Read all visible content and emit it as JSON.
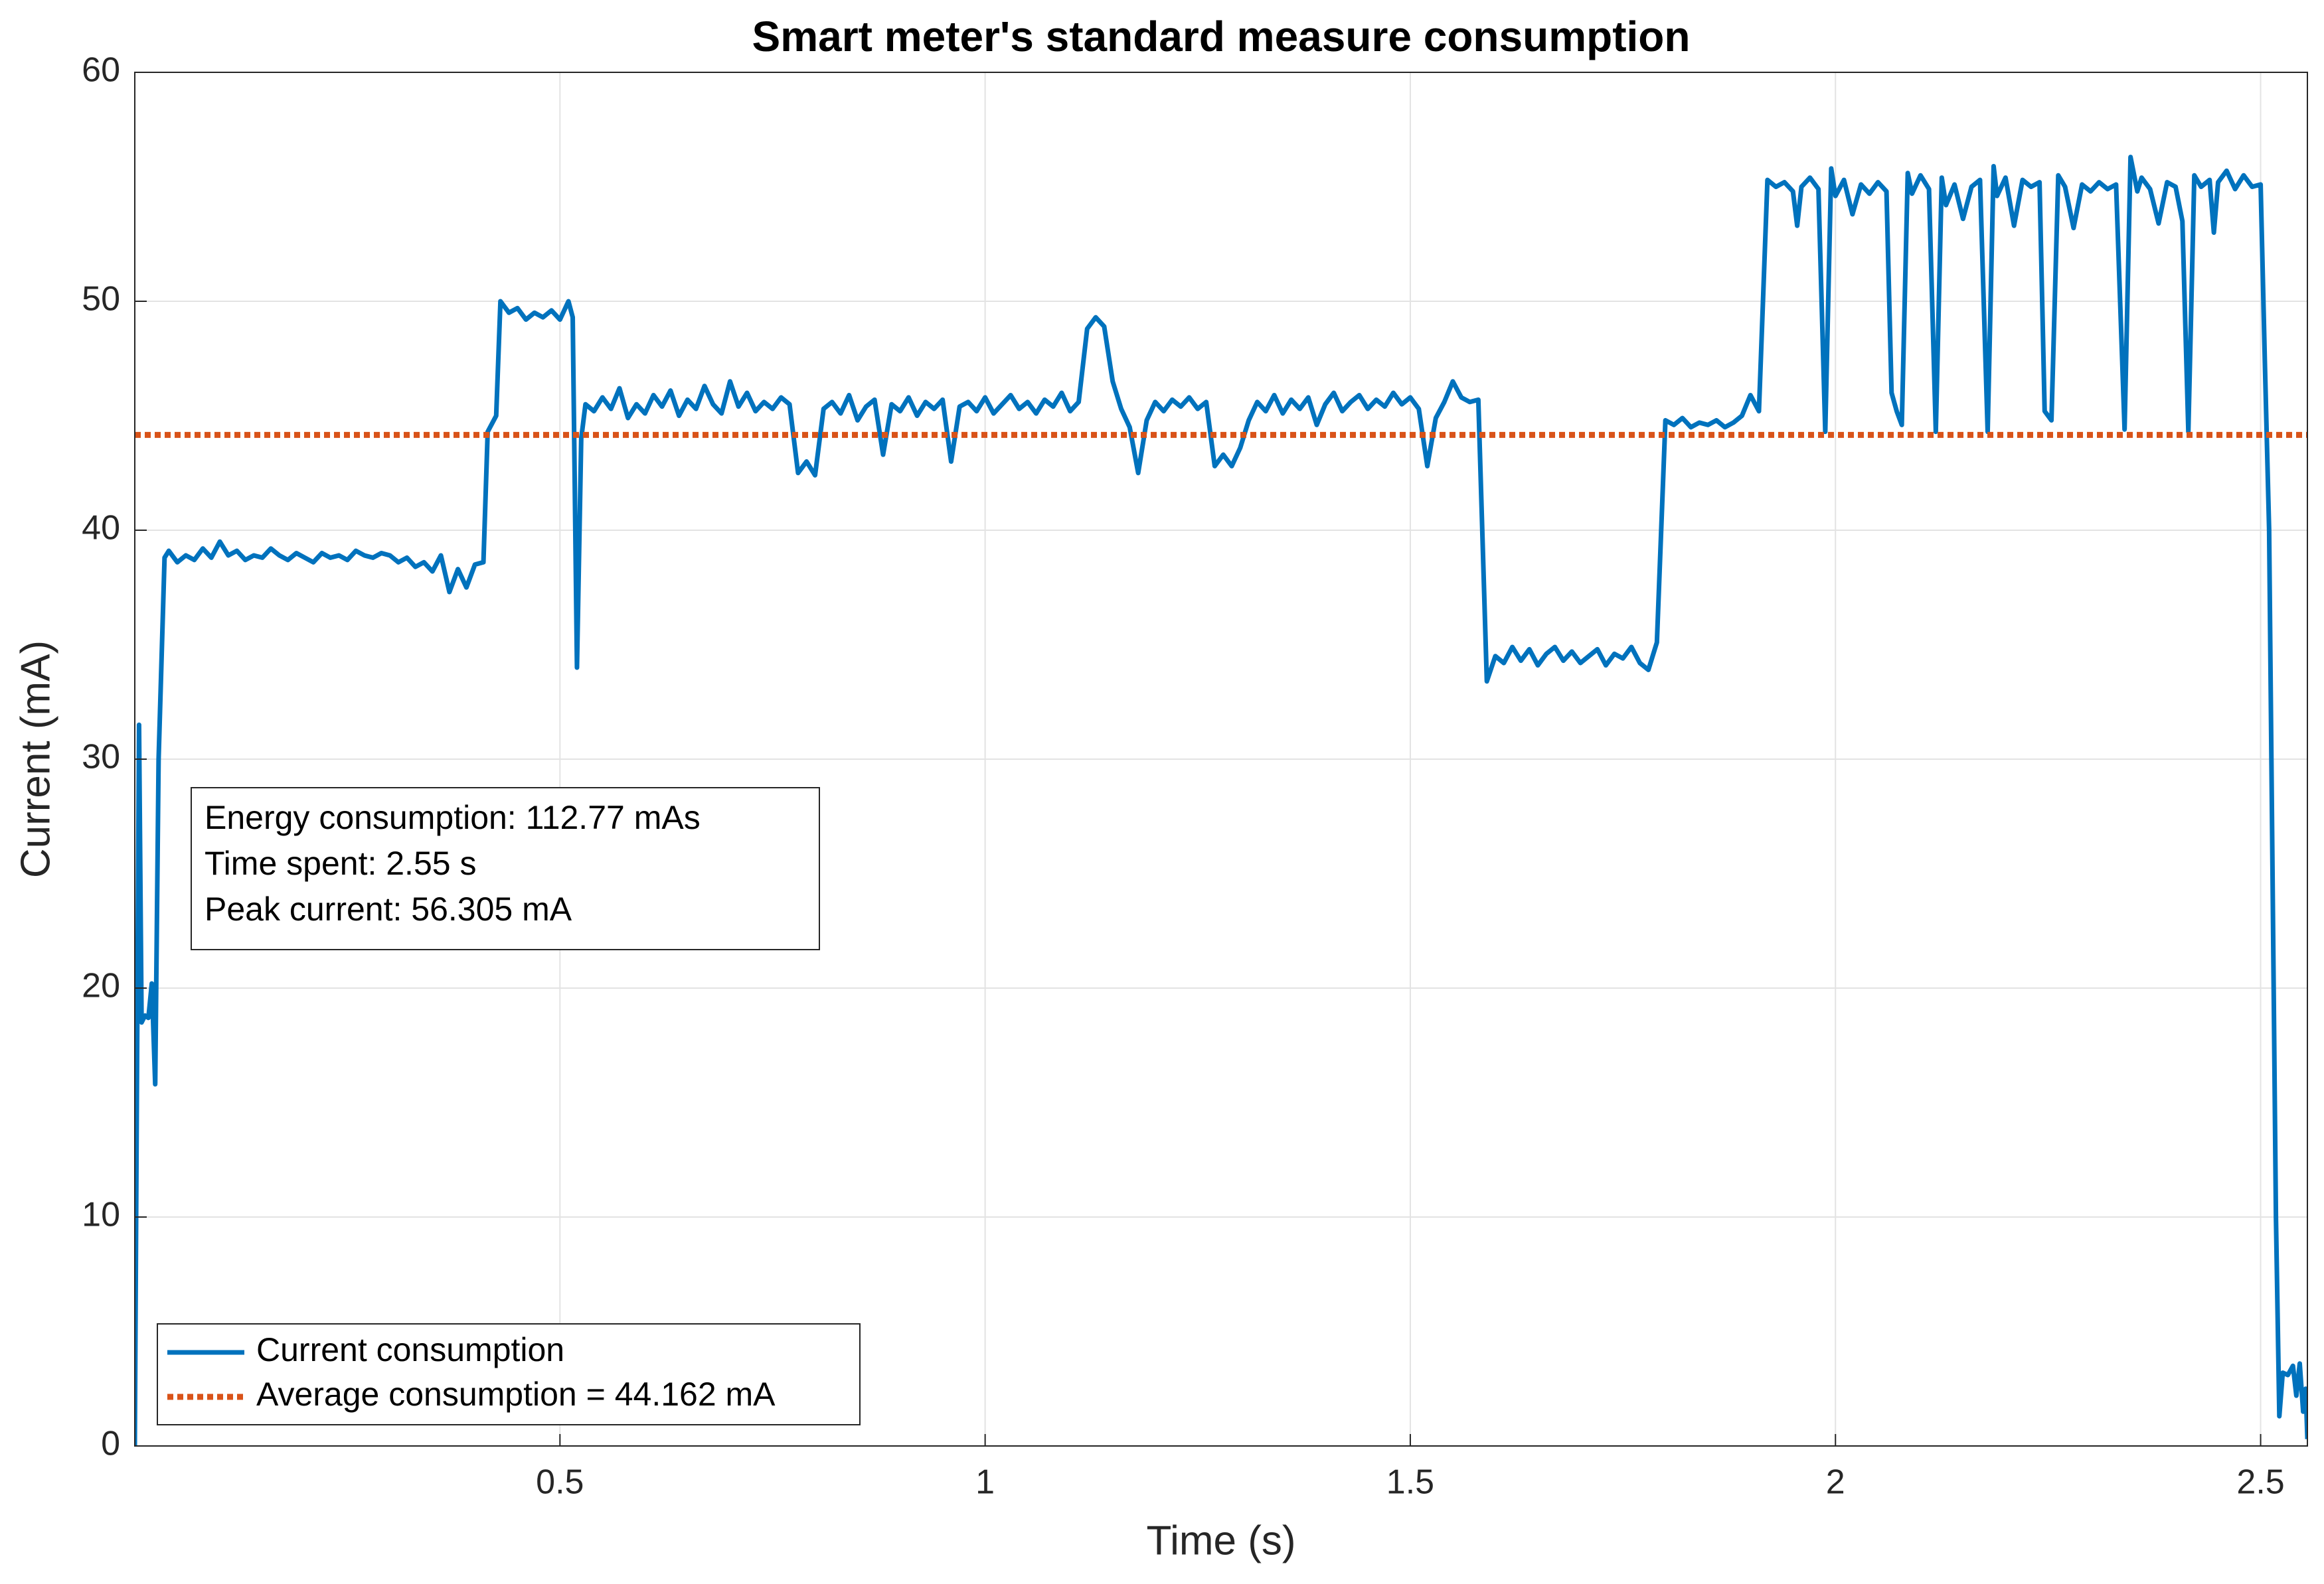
{
  "chart_data": {
    "type": "line",
    "title": "Smart meter's standard measure consumption",
    "xlabel": "Time (s)",
    "ylabel": "Current (mA)",
    "xlim": [
      0,
      2.555
    ],
    "ylim": [
      0,
      60
    ],
    "xticks": [
      0.5,
      1,
      1.5,
      2,
      2.5
    ],
    "yticks": [
      0,
      10,
      20,
      30,
      40,
      50,
      60
    ],
    "grid": true,
    "legend": "lower left",
    "annotation": [
      "Energy consumption: 112.77 mAs",
      "Time spent: 2.55 s",
      "Peak current: 56.305 mA"
    ],
    "average": {
      "name": "Average consumption = 44.162 mA",
      "color": "#d95319",
      "value": 44.162
    },
    "x": [
      0,
      0.005,
      0.008,
      0.012,
      0.016,
      0.02,
      0.024,
      0.028,
      0.035,
      0.04,
      0.05,
      0.06,
      0.07,
      0.08,
      0.09,
      0.1,
      0.11,
      0.12,
      0.13,
      0.14,
      0.15,
      0.16,
      0.17,
      0.18,
      0.19,
      0.2,
      0.21,
      0.22,
      0.23,
      0.24,
      0.25,
      0.26,
      0.27,
      0.28,
      0.29,
      0.3,
      0.31,
      0.32,
      0.33,
      0.34,
      0.35,
      0.36,
      0.37,
      0.38,
      0.39,
      0.4,
      0.41,
      0.415,
      0.425,
      0.43,
      0.44,
      0.45,
      0.46,
      0.47,
      0.48,
      0.49,
      0.5,
      0.51,
      0.515,
      0.52,
      0.525,
      0.53,
      0.54,
      0.55,
      0.56,
      0.57,
      0.58,
      0.59,
      0.6,
      0.61,
      0.62,
      0.63,
      0.64,
      0.65,
      0.66,
      0.67,
      0.68,
      0.69,
      0.7,
      0.71,
      0.72,
      0.73,
      0.74,
      0.75,
      0.76,
      0.77,
      0.78,
      0.79,
      0.8,
      0.81,
      0.82,
      0.83,
      0.84,
      0.85,
      0.86,
      0.87,
      0.88,
      0.89,
      0.9,
      0.91,
      0.92,
      0.93,
      0.94,
      0.95,
      0.96,
      0.97,
      0.98,
      0.99,
      1,
      1.01,
      1.02,
      1.03,
      1.04,
      1.05,
      1.06,
      1.07,
      1.08,
      1.09,
      1.1,
      1.11,
      1.12,
      1.13,
      1.14,
      1.15,
      1.16,
      1.17,
      1.18,
      1.19,
      1.2,
      1.21,
      1.22,
      1.23,
      1.24,
      1.25,
      1.26,
      1.27,
      1.28,
      1.29,
      1.3,
      1.31,
      1.32,
      1.33,
      1.34,
      1.35,
      1.36,
      1.37,
      1.38,
      1.39,
      1.4,
      1.41,
      1.42,
      1.43,
      1.44,
      1.45,
      1.46,
      1.47,
      1.48,
      1.49,
      1.5,
      1.51,
      1.52,
      1.53,
      1.54,
      1.55,
      1.56,
      1.57,
      1.58,
      1.59,
      1.6,
      1.61,
      1.62,
      1.63,
      1.64,
      1.65,
      1.66,
      1.67,
      1.68,
      1.69,
      1.7,
      1.71,
      1.72,
      1.73,
      1.74,
      1.75,
      1.76,
      1.77,
      1.78,
      1.79,
      1.8,
      1.81,
      1.82,
      1.83,
      1.84,
      1.85,
      1.86,
      1.87,
      1.88,
      1.89,
      1.9,
      1.91,
      1.92,
      1.93,
      1.94,
      1.95,
      1.955,
      1.96,
      1.97,
      1.98,
      1.988,
      1.995,
      2,
      2.01,
      2.02,
      2.03,
      2.04,
      2.05,
      2.06,
      2.066,
      2.072,
      2.078,
      2.085,
      2.09,
      2.1,
      2.11,
      2.118,
      2.125,
      2.13,
      2.14,
      2.15,
      2.16,
      2.17,
      2.179,
      2.186,
      2.19,
      2.2,
      2.21,
      2.22,
      2.23,
      2.24,
      2.246,
      2.254,
      2.262,
      2.27,
      2.28,
      2.29,
      2.3,
      2.31,
      2.32,
      2.33,
      2.34,
      2.347,
      2.355,
      2.36,
      2.37,
      2.38,
      2.39,
      2.4,
      2.408,
      2.415,
      2.422,
      2.43,
      2.44,
      2.445,
      2.45,
      2.46,
      2.47,
      2.48,
      2.49,
      2.5,
      2.505,
      2.51,
      2.518,
      2.522,
      2.526,
      2.532,
      2.538,
      2.542,
      2.546,
      2.55,
      2.553,
      2.555
    ],
    "series": [
      {
        "name": "Current consumption",
        "color": "#0072bd",
        "values": [
          0,
          31.5,
          18.5,
          18.8,
          18.7,
          20.2,
          15.8,
          30,
          38.8,
          39.1,
          38.6,
          38.9,
          38.7,
          39.2,
          38.8,
          39.5,
          38.9,
          39.1,
          38.7,
          38.9,
          38.8,
          39.2,
          38.9,
          38.7,
          39,
          38.8,
          38.6,
          39,
          38.8,
          38.9,
          38.7,
          39.1,
          38.9,
          38.8,
          39,
          38.9,
          38.6,
          38.8,
          38.4,
          38.6,
          38.2,
          38.9,
          37.3,
          38.3,
          37.5,
          38.5,
          38.6,
          44.3,
          45,
          50,
          49.5,
          49.7,
          49.2,
          49.5,
          49.3,
          49.6,
          49.2,
          50,
          49.3,
          34,
          44,
          45.5,
          45.2,
          45.8,
          45.3,
          46.2,
          44.9,
          45.5,
          45.1,
          45.9,
          45.4,
          46.1,
          45,
          45.7,
          45.3,
          46.3,
          45.5,
          45.1,
          46.5,
          45.4,
          46,
          45.2,
          45.6,
          45.3,
          45.8,
          45.5,
          42.5,
          43,
          42.4,
          45.3,
          45.6,
          45.1,
          45.9,
          44.8,
          45.4,
          45.7,
          43.3,
          45.5,
          45.2,
          45.8,
          45.0,
          45.6,
          45.3,
          45.7,
          43,
          45.4,
          45.6,
          45.2,
          45.8,
          45.1,
          45.5,
          45.9,
          45.3,
          45.6,
          45.1,
          45.7,
          45.4,
          46,
          45.2,
          45.6,
          48.8,
          49.3,
          48.9,
          46.5,
          45.3,
          44.5,
          42.5,
          44.8,
          45.6,
          45.2,
          45.7,
          45.4,
          45.8,
          45.3,
          45.6,
          42.8,
          43.3,
          42.8,
          43.6,
          44.8,
          45.6,
          45.2,
          45.9,
          45.1,
          45.7,
          45.3,
          45.8,
          44.6,
          45.5,
          46,
          45.2,
          45.6,
          45.9,
          45.3,
          45.7,
          45.4,
          46,
          45.5,
          45.8,
          45.3,
          42.8,
          44.9,
          45.6,
          46.5,
          45.8,
          45.6,
          45.7,
          33.4,
          34.5,
          34.2,
          34.9,
          34.3,
          34.8,
          34.1,
          34.6,
          34.9,
          34.3,
          34.7,
          34.2,
          34.5,
          34.8,
          34.1,
          34.6,
          34.4,
          34.9,
          34.2,
          33.9,
          35.1,
          44.8,
          44.6,
          44.9,
          44.5,
          44.7,
          44.6,
          44.8,
          44.5,
          44.7,
          45,
          45.9,
          45.2,
          55.3,
          55,
          55.2,
          54.8,
          53.3,
          55,
          55.4,
          54.9,
          44.3,
          55.8,
          54.6,
          55.3,
          53.8,
          55.1,
          54.7,
          55.2,
          54.8,
          46,
          45.2,
          44.6,
          55.6,
          54.7,
          55.5,
          54.9,
          44.3,
          55.4,
          54.2,
          55.1,
          53.6,
          55,
          55.3,
          44.3,
          55.9,
          54.6,
          55.4,
          53.3,
          55.3,
          55,
          55.2,
          45.2,
          44.8,
          55.5,
          55,
          53.2,
          55.1,
          54.8,
          55.2,
          54.9,
          55.1,
          44.4,
          56.3,
          54.8,
          55.4,
          54.9,
          53.4,
          55.2,
          55,
          53.5,
          44.3,
          55.5,
          55,
          55.3,
          53,
          55.2,
          55.7,
          54.9,
          55.5,
          55,
          55.1,
          47.3,
          40,
          10,
          1.3,
          3.2,
          3.1,
          3.5,
          2.2,
          3.6,
          1.5,
          2.5,
          0.3
        ]
      }
    ]
  }
}
